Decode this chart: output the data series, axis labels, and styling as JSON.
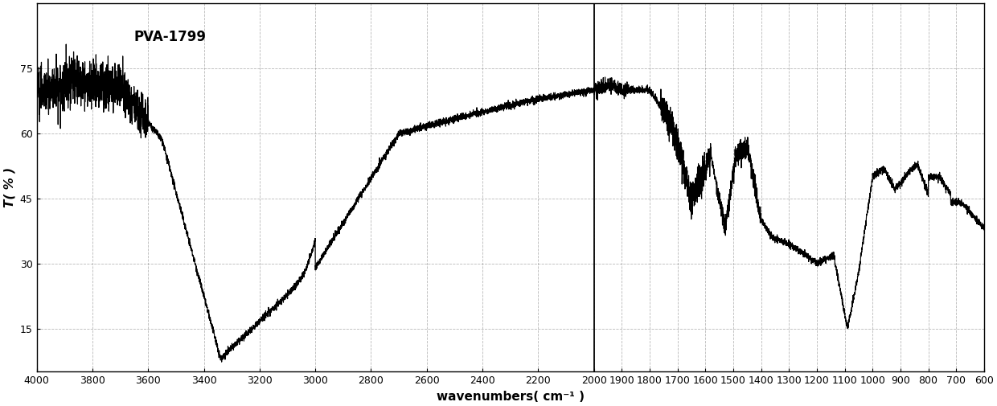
{
  "title": "PVA-1799",
  "xlabel": "wavenumbers( cm⁻¹ )",
  "ylabel": "T( % )",
  "xmin": 600,
  "xmax": 4000,
  "ymin": 5,
  "ymax": 90,
  "yticks": [
    15,
    30,
    45,
    60,
    75
  ],
  "xticks": [
    4000,
    3800,
    3600,
    3400,
    3200,
    3000,
    2800,
    2600,
    2400,
    2200,
    2000,
    1900,
    1800,
    1700,
    1600,
    1500,
    1400,
    1300,
    1200,
    1100,
    1000,
    900,
    800,
    700,
    600
  ],
  "vline_x": 2000,
  "line_color": "#000000",
  "bg_color": "#ffffff",
  "grid_color": "#888888",
  "label_fontsize": 11,
  "tick_fontsize": 9,
  "title_fontsize": 12
}
